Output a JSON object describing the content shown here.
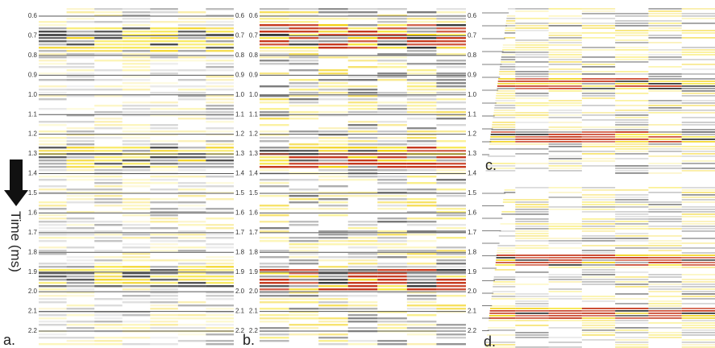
{
  "panels": [
    {
      "label": "a."
    },
    {
      "label": "b."
    },
    {
      "label": "c."
    },
    {
      "label": "d."
    }
  ],
  "axis_title": "Time (ms)",
  "ticks": [
    "0.6",
    "0.7",
    "0.8",
    "0.9",
    "1.0",
    "1.1",
    "1.2",
    "1.3",
    "1.4",
    "1.5",
    "1.6",
    "1.7",
    "1.8",
    "1.9",
    "2.0",
    "2.1",
    "2.2"
  ]
}
